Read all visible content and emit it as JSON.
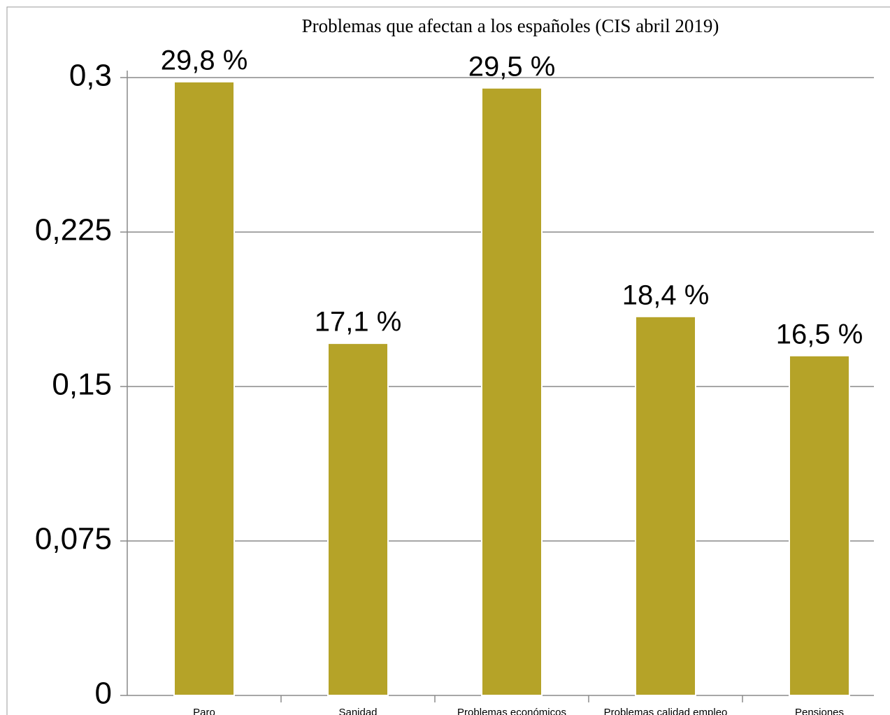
{
  "chart_data": {
    "type": "bar",
    "title": "Problemas que afectan a los españoles (CIS abril 2019)",
    "categories": [
      "Paro",
      "Sanidad",
      "Problemas económicos",
      "Problemas calidad empleo",
      "Pensiones"
    ],
    "values": [
      0.298,
      0.171,
      0.295,
      0.184,
      0.165
    ],
    "value_labels": [
      "29,8 %",
      "17,1 %",
      "29,5 %",
      "18,4 %",
      "16,5 %"
    ],
    "color": "#b5a328",
    "ylim": [
      0,
      0.3
    ],
    "yticks": [
      0,
      {
        "value": 0.075,
        "label": "0,075"
      },
      {
        "value": 0.15,
        "label": "0,15"
      },
      {
        "value": 0.225,
        "label": "0,225"
      },
      {
        "value": 0.3,
        "label": "0,3"
      }
    ],
    "grid": true
  }
}
